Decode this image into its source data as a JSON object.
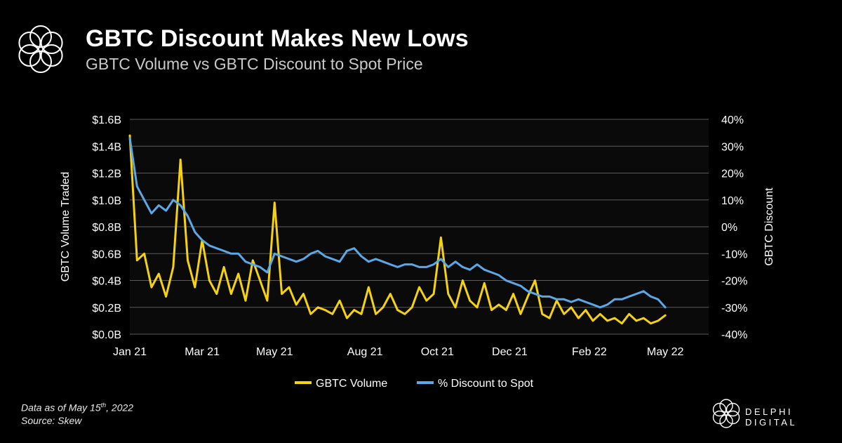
{
  "header": {
    "title": "GBTC Discount Makes New Lows",
    "subtitle": "GBTC Volume vs GBTC Discount to Spot Price"
  },
  "footer": {
    "data_note_prefix": "Data as of May 15",
    "data_note_sup": "th",
    "data_note_suffix": ", 2022",
    "source": "Source: Skew",
    "brand": "DELPHI DIGITAL"
  },
  "colors": {
    "background": "#000000",
    "plot_bg": "#0a0a0a",
    "volume": "#f5d20f",
    "discount": "#5aa9e6",
    "grid": "#5a5a5a"
  },
  "chart_data": {
    "type": "line",
    "title": "GBTC Discount Makes New Lows",
    "subtitle": "GBTC Volume vs GBTC Discount to Spot Price",
    "xlabel": "",
    "ylabel": "GBTC Volume Traded",
    "y2label": "GBTC Discount",
    "xlim": [
      0,
      16
    ],
    "ylim": [
      0,
      1.6
    ],
    "y2lim": [
      -40,
      40
    ],
    "grid": true,
    "legend_position": "bottom",
    "x_ticks": [
      {
        "pos": 0,
        "label": "Jan 21"
      },
      {
        "pos": 2,
        "label": "Mar 21"
      },
      {
        "pos": 4,
        "label": "May 21"
      },
      {
        "pos": 6.5,
        "label": "Aug 21"
      },
      {
        "pos": 8.5,
        "label": "Oct 21"
      },
      {
        "pos": 10.5,
        "label": "Dec 21"
      },
      {
        "pos": 12.7,
        "label": "Feb 22"
      },
      {
        "pos": 14.8,
        "label": "May 22"
      }
    ],
    "y_ticks": [
      "$0.0B",
      "$0.2B",
      "$0.4B",
      "$0.6B",
      "$0.8B",
      "$1.0B",
      "$1.2B",
      "$1.4B",
      "$1.6B"
    ],
    "y_tick_values": [
      0,
      0.2,
      0.4,
      0.6,
      0.8,
      1.0,
      1.2,
      1.4,
      1.6
    ],
    "y2_ticks": [
      "-40%",
      "-30%",
      "-20%",
      "-10%",
      "0%",
      "10%",
      "20%",
      "30%",
      "40%"
    ],
    "y2_tick_values": [
      -40,
      -30,
      -20,
      -10,
      0,
      10,
      20,
      30,
      40
    ],
    "series": [
      {
        "name": "GBTC Volume",
        "axis": "left",
        "x": [
          0,
          0.2,
          0.4,
          0.6,
          0.8,
          1.0,
          1.2,
          1.4,
          1.6,
          1.8,
          2.0,
          2.2,
          2.4,
          2.6,
          2.8,
          3.0,
          3.2,
          3.4,
          3.6,
          3.8,
          4.0,
          4.2,
          4.4,
          4.6,
          4.8,
          5.0,
          5.2,
          5.4,
          5.6,
          5.8,
          6.0,
          6.2,
          6.4,
          6.6,
          6.8,
          7.0,
          7.2,
          7.4,
          7.6,
          7.8,
          8.0,
          8.2,
          8.4,
          8.6,
          8.8,
          9.0,
          9.2,
          9.4,
          9.6,
          9.8,
          10.0,
          10.2,
          10.4,
          10.6,
          10.8,
          11.0,
          11.2,
          11.4,
          11.6,
          11.8,
          12.0,
          12.2,
          12.4,
          12.6,
          12.8,
          13.0,
          13.2,
          13.4,
          13.6,
          13.8,
          14.0,
          14.2,
          14.4,
          14.6,
          14.8
        ],
        "values": [
          1.48,
          0.55,
          0.6,
          0.35,
          0.45,
          0.28,
          0.5,
          1.3,
          0.55,
          0.35,
          0.7,
          0.4,
          0.3,
          0.5,
          0.3,
          0.45,
          0.25,
          0.55,
          0.4,
          0.25,
          0.98,
          0.3,
          0.35,
          0.22,
          0.3,
          0.15,
          0.2,
          0.18,
          0.15,
          0.25,
          0.12,
          0.18,
          0.15,
          0.35,
          0.15,
          0.2,
          0.3,
          0.18,
          0.15,
          0.2,
          0.35,
          0.25,
          0.3,
          0.72,
          0.3,
          0.2,
          0.4,
          0.25,
          0.2,
          0.38,
          0.18,
          0.22,
          0.18,
          0.3,
          0.15,
          0.28,
          0.4,
          0.15,
          0.12,
          0.25,
          0.15,
          0.2,
          0.12,
          0.18,
          0.1,
          0.15,
          0.1,
          0.12,
          0.08,
          0.15,
          0.1,
          0.12,
          0.08,
          0.1,
          0.14
        ]
      },
      {
        "name": "% Discount to Spot",
        "axis": "right",
        "x": [
          0,
          0.2,
          0.4,
          0.6,
          0.8,
          1.0,
          1.2,
          1.4,
          1.6,
          1.8,
          2.0,
          2.2,
          2.4,
          2.6,
          2.8,
          3.0,
          3.2,
          3.4,
          3.6,
          3.8,
          4.0,
          4.2,
          4.4,
          4.6,
          4.8,
          5.0,
          5.2,
          5.4,
          5.6,
          5.8,
          6.0,
          6.2,
          6.4,
          6.6,
          6.8,
          7.0,
          7.2,
          7.4,
          7.6,
          7.8,
          8.0,
          8.2,
          8.4,
          8.6,
          8.8,
          9.0,
          9.2,
          9.4,
          9.6,
          9.8,
          10.0,
          10.2,
          10.4,
          10.6,
          10.8,
          11.0,
          11.2,
          11.4,
          11.6,
          11.8,
          12.0,
          12.2,
          12.4,
          12.6,
          12.8,
          13.0,
          13.2,
          13.4,
          13.6,
          13.8,
          14.0,
          14.2,
          14.4,
          14.6,
          14.8
        ],
        "values": [
          33,
          15,
          10,
          5,
          8,
          6,
          10,
          8,
          4,
          -2,
          -5,
          -7,
          -8,
          -9,
          -10,
          -10,
          -13,
          -14,
          -15,
          -17,
          -10,
          -11,
          -12,
          -13,
          -12,
          -10,
          -9,
          -11,
          -12,
          -13,
          -9,
          -8,
          -11,
          -13,
          -12,
          -13,
          -14,
          -15,
          -14,
          -14,
          -15,
          -15,
          -14,
          -12,
          -15,
          -13,
          -15,
          -16,
          -14,
          -16,
          -17,
          -18,
          -20,
          -21,
          -22,
          -24,
          -25,
          -26,
          -26,
          -27,
          -27,
          -28,
          -27,
          -28,
          -29,
          -30,
          -29,
          -27,
          -27,
          -26,
          -25,
          -24,
          -26,
          -27,
          -30
        ]
      }
    ]
  }
}
